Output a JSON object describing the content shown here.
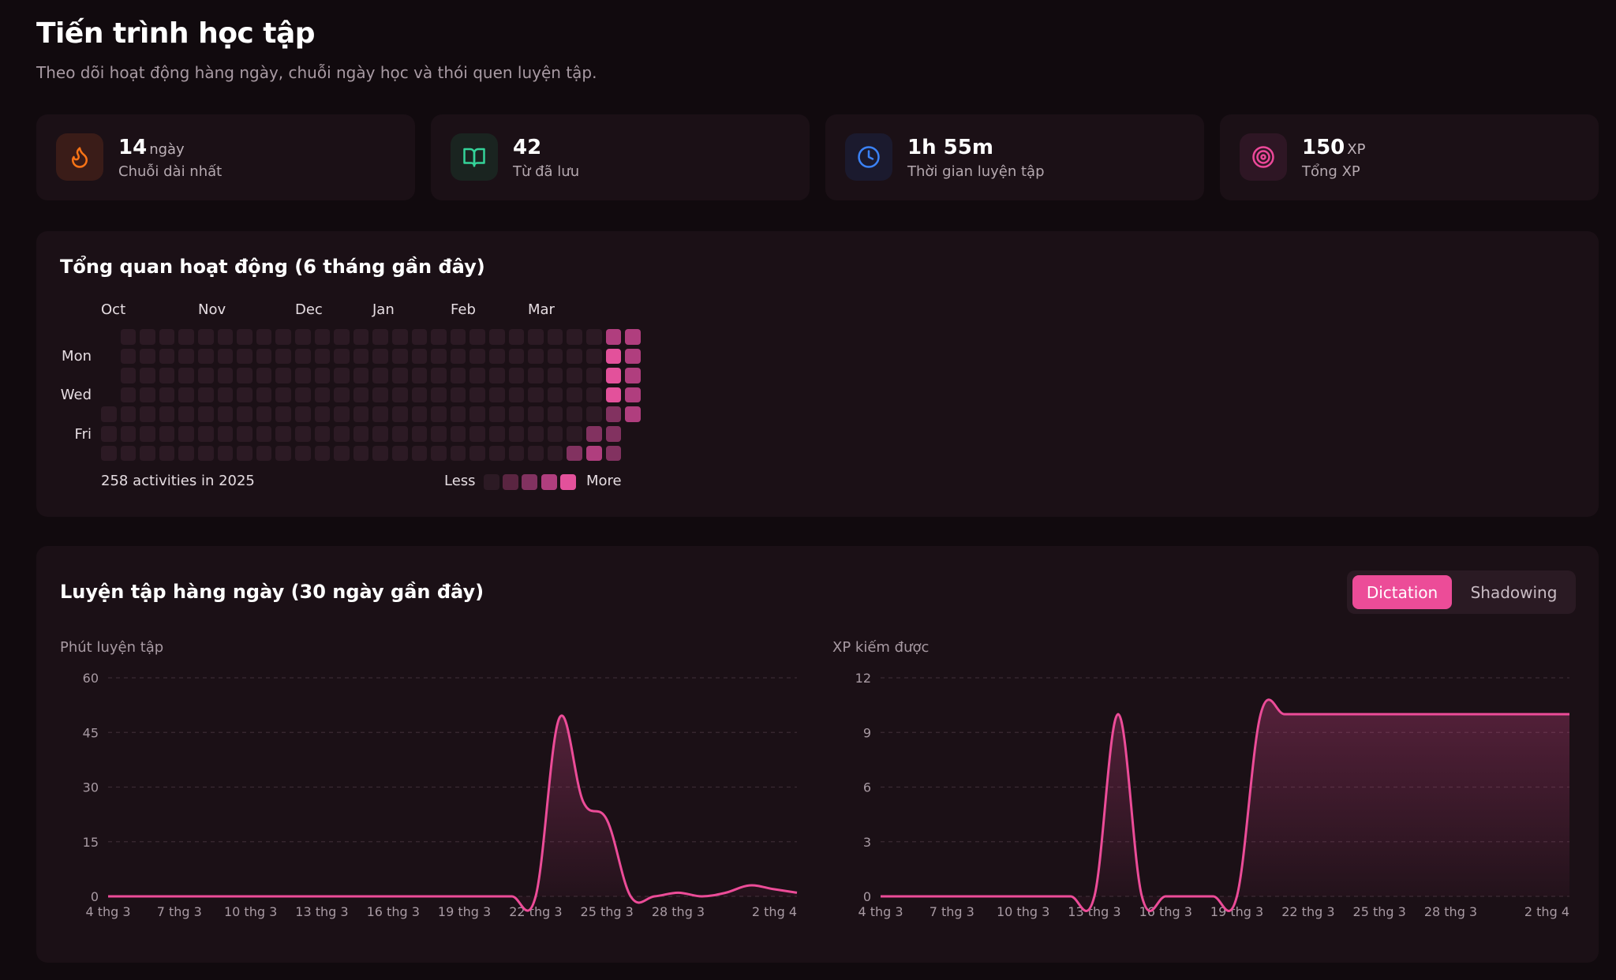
{
  "header": {
    "title": "Tiến trình học tập",
    "subtitle": "Theo dõi hoạt động hàng ngày, chuỗi ngày học và thói quen luyện tập."
  },
  "stats": [
    {
      "value": "14",
      "unit": "ngày",
      "label": "Chuỗi dài nhất",
      "icon": "flame-icon",
      "color": "#f97316"
    },
    {
      "value": "42",
      "unit": "",
      "label": "Từ đã lưu",
      "icon": "book-icon",
      "color": "#34d399"
    },
    {
      "value": "1h 55m",
      "unit": "",
      "label": "Thời gian luyện tập",
      "icon": "clock-icon",
      "color": "#3b82f6"
    },
    {
      "value": "150",
      "unit": "XP",
      "label": "Tổng XP",
      "icon": "target-icon",
      "color": "#ec4899"
    }
  ],
  "activity": {
    "title": "Tổng quan hoạt động (6 tháng gần đây)",
    "months": [
      "Oct",
      "Nov",
      "Dec",
      "Jan",
      "Feb",
      "Mar"
    ],
    "days": [
      "Mon",
      "Wed",
      "Fri"
    ],
    "footer": "258 activities in 2025",
    "legend_less": "Less",
    "legend_more": "More",
    "colors": [
      "#2c1a24",
      "#5a2541",
      "#823260",
      "#b03e7e",
      "#e3519b"
    ],
    "heatmap_weeks": [
      [
        null,
        null,
        null,
        null,
        0,
        0,
        0
      ],
      [
        0,
        0,
        0,
        0,
        0,
        0,
        0
      ],
      [
        0,
        0,
        0,
        0,
        0,
        0,
        0
      ],
      [
        0,
        0,
        0,
        0,
        0,
        0,
        0
      ],
      [
        0,
        0,
        0,
        0,
        0,
        0,
        0
      ],
      [
        0,
        0,
        0,
        0,
        0,
        0,
        0
      ],
      [
        0,
        0,
        0,
        0,
        0,
        0,
        0
      ],
      [
        0,
        0,
        0,
        0,
        0,
        0,
        0
      ],
      [
        0,
        0,
        0,
        0,
        0,
        0,
        0
      ],
      [
        0,
        0,
        0,
        0,
        0,
        0,
        0
      ],
      [
        0,
        0,
        0,
        0,
        0,
        0,
        0
      ],
      [
        0,
        0,
        0,
        0,
        0,
        0,
        0
      ],
      [
        0,
        0,
        0,
        0,
        0,
        0,
        0
      ],
      [
        0,
        0,
        0,
        0,
        0,
        0,
        0
      ],
      [
        0,
        0,
        0,
        0,
        0,
        0,
        0
      ],
      [
        0,
        0,
        0,
        0,
        0,
        0,
        0
      ],
      [
        0,
        0,
        0,
        0,
        0,
        0,
        0
      ],
      [
        0,
        0,
        0,
        0,
        0,
        0,
        0
      ],
      [
        0,
        0,
        0,
        0,
        0,
        0,
        0
      ],
      [
        0,
        0,
        0,
        0,
        0,
        0,
        0
      ],
      [
        0,
        0,
        0,
        0,
        0,
        0,
        0
      ],
      [
        0,
        0,
        0,
        0,
        0,
        0,
        0
      ],
      [
        0,
        0,
        0,
        0,
        0,
        0,
        0
      ],
      [
        0,
        0,
        0,
        0,
        0,
        0,
        0
      ],
      [
        0,
        0,
        0,
        0,
        0,
        0,
        2
      ],
      [
        0,
        0,
        0,
        0,
        0,
        2,
        3
      ],
      [
        3,
        4,
        4,
        4,
        2,
        2,
        2
      ],
      [
        3,
        3,
        3,
        3,
        3,
        null,
        null
      ]
    ]
  },
  "practice": {
    "title": "Luyện tập hàng ngày (30 ngày gần đây)",
    "tabs": [
      "Dictation",
      "Shadowing"
    ],
    "active_tab": "Dictation"
  },
  "chart_data": [
    {
      "type": "area",
      "title": "Phút luyện tập",
      "x": [
        "4 thg 3",
        "5 thg 3",
        "6 thg 3",
        "7 thg 3",
        "8 thg 3",
        "9 thg 3",
        "10 thg 3",
        "11 thg 3",
        "12 thg 3",
        "13 thg 3",
        "14 thg 3",
        "15 thg 3",
        "16 thg 3",
        "17 thg 3",
        "18 thg 3",
        "19 thg 3",
        "20 thg 3",
        "21 thg 3",
        "22 thg 3",
        "23 thg 3",
        "24 thg 3",
        "25 thg 3",
        "26 thg 3",
        "27 thg 3",
        "28 thg 3",
        "29 thg 3",
        "30 thg 3",
        "31 thg 3",
        "1 thg 4",
        "2 thg 4"
      ],
      "values": [
        0,
        0,
        0,
        0,
        0,
        0,
        0,
        0,
        0,
        0,
        0,
        0,
        0,
        0,
        0,
        0,
        0,
        0,
        0,
        49,
        26,
        21,
        0,
        0,
        1,
        0,
        1,
        3,
        2,
        1
      ],
      "xticks": [
        "4 thg 3",
        "7 thg 3",
        "10 thg 3",
        "13 thg 3",
        "16 thg 3",
        "19 thg 3",
        "22 thg 3",
        "25 thg 3",
        "28 thg 3",
        "2 thg 4"
      ],
      "yticks": [
        0,
        15,
        30,
        45,
        60
      ],
      "ylim": [
        0,
        60
      ],
      "color": "#ec4c98"
    },
    {
      "type": "area",
      "title": "XP kiếm được",
      "x": [
        "4 thg 3",
        "5 thg 3",
        "6 thg 3",
        "7 thg 3",
        "8 thg 3",
        "9 thg 3",
        "10 thg 3",
        "11 thg 3",
        "12 thg 3",
        "13 thg 3",
        "14 thg 3",
        "15 thg 3",
        "16 thg 3",
        "17 thg 3",
        "18 thg 3",
        "19 thg 3",
        "20 thg 3",
        "21 thg 3",
        "22 thg 3",
        "23 thg 3",
        "24 thg 3",
        "25 thg 3",
        "26 thg 3",
        "27 thg 3",
        "28 thg 3",
        "29 thg 3",
        "30 thg 3",
        "31 thg 3",
        "1 thg 4",
        "2 thg 4"
      ],
      "values": [
        0,
        0,
        0,
        0,
        0,
        0,
        0,
        0,
        0,
        0,
        10,
        0,
        0,
        0,
        0,
        0,
        10,
        10,
        10,
        10,
        10,
        10,
        10,
        10,
        10,
        10,
        10,
        10,
        10,
        10
      ],
      "xticks": [
        "4 thg 3",
        "7 thg 3",
        "10 thg 3",
        "13 thg 3",
        "16 thg 3",
        "19 thg 3",
        "22 thg 3",
        "25 thg 3",
        "28 thg 3",
        "2 thg 4"
      ],
      "yticks": [
        0,
        3,
        6,
        9,
        12
      ],
      "ylim": [
        0,
        12
      ],
      "color": "#ec4c98"
    }
  ]
}
